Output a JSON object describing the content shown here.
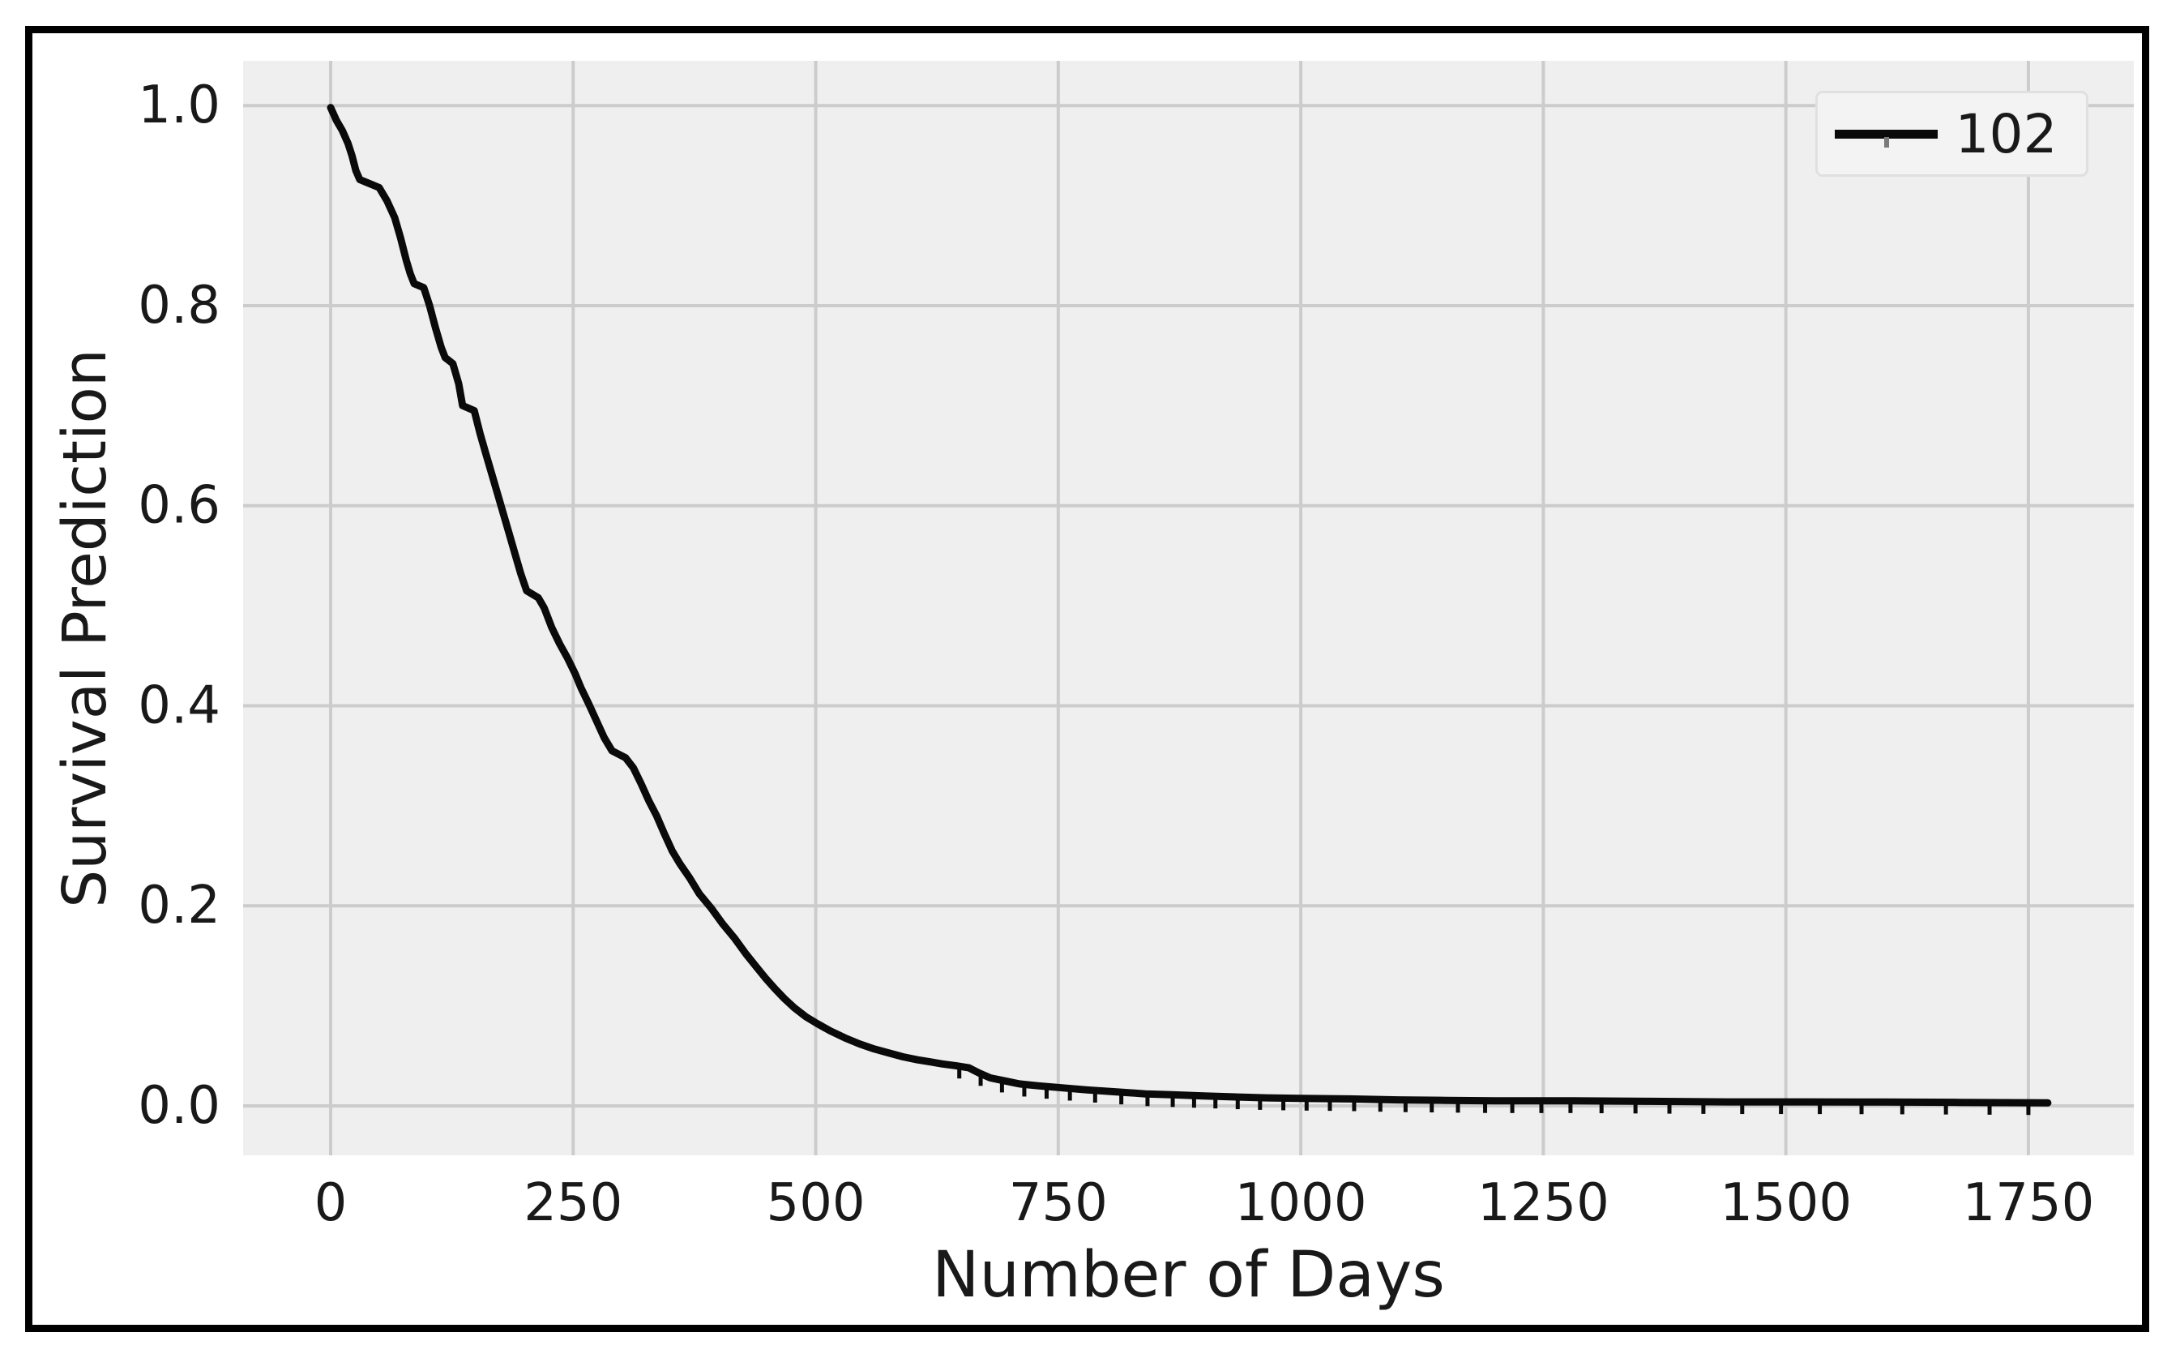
{
  "figure": {
    "kind": "survival-curve-figure",
    "background": "#ffffff",
    "frame_color": "#000000"
  },
  "chart_data": {
    "type": "line",
    "title": "",
    "xlabel": "Number of Days",
    "ylabel": "Survival Prediction",
    "xlim": [
      -90,
      1860
    ],
    "ylim": [
      -0.05,
      1.045
    ],
    "x_ticks": [
      "0",
      "250",
      "500",
      "750",
      "1000",
      "1250",
      "1500",
      "1750"
    ],
    "x_tick_values": [
      0,
      250,
      500,
      750,
      1000,
      1250,
      1500,
      1750
    ],
    "y_ticks": [
      "0.0",
      "0.2",
      "0.4",
      "0.6",
      "0.8",
      "1.0"
    ],
    "y_tick_values": [
      0.0,
      0.2,
      0.4,
      0.6,
      0.8,
      1.0
    ],
    "grid": true,
    "legend_position": "upper right",
    "colors": {
      "plot_bg": "#efefef",
      "grid": "#cccccc",
      "line": "#0a0a0a",
      "text": "#191919",
      "legend_bg": "#f3f3f3",
      "legend_border": "#e0e0e0",
      "censor_mark": "#0a0a0a"
    },
    "series": [
      {
        "name": "102",
        "color": "#0a0a0a",
        "points": [
          [
            0,
            0.998
          ],
          [
            6,
            0.985
          ],
          [
            12,
            0.975
          ],
          [
            18,
            0.962
          ],
          [
            22,
            0.95
          ],
          [
            26,
            0.935
          ],
          [
            30,
            0.926
          ],
          [
            40,
            0.922
          ],
          [
            50,
            0.918
          ],
          [
            58,
            0.905
          ],
          [
            66,
            0.888
          ],
          [
            72,
            0.868
          ],
          [
            78,
            0.845
          ],
          [
            82,
            0.832
          ],
          [
            86,
            0.822
          ],
          [
            96,
            0.818
          ],
          [
            102,
            0.8
          ],
          [
            108,
            0.778
          ],
          [
            114,
            0.758
          ],
          [
            118,
            0.748
          ],
          [
            126,
            0.742
          ],
          [
            132,
            0.722
          ],
          [
            136,
            0.7
          ],
          [
            148,
            0.695
          ],
          [
            154,
            0.672
          ],
          [
            160,
            0.652
          ],
          [
            166,
            0.632
          ],
          [
            172,
            0.612
          ],
          [
            178,
            0.592
          ],
          [
            184,
            0.572
          ],
          [
            190,
            0.552
          ],
          [
            196,
            0.532
          ],
          [
            202,
            0.515
          ],
          [
            214,
            0.508
          ],
          [
            220,
            0.498
          ],
          [
            228,
            0.478
          ],
          [
            236,
            0.462
          ],
          [
            244,
            0.448
          ],
          [
            252,
            0.432
          ],
          [
            258,
            0.418
          ],
          [
            266,
            0.402
          ],
          [
            274,
            0.385
          ],
          [
            282,
            0.368
          ],
          [
            290,
            0.355
          ],
          [
            304,
            0.348
          ],
          [
            312,
            0.338
          ],
          [
            320,
            0.322
          ],
          [
            328,
            0.305
          ],
          [
            336,
            0.29
          ],
          [
            344,
            0.272
          ],
          [
            352,
            0.255
          ],
          [
            360,
            0.242
          ],
          [
            370,
            0.228
          ],
          [
            380,
            0.212
          ],
          [
            392,
            0.198
          ],
          [
            404,
            0.182
          ],
          [
            416,
            0.168
          ],
          [
            428,
            0.152
          ],
          [
            438,
            0.14
          ],
          [
            448,
            0.128
          ],
          [
            458,
            0.117
          ],
          [
            468,
            0.107
          ],
          [
            478,
            0.098
          ],
          [
            490,
            0.089
          ],
          [
            502,
            0.082
          ],
          [
            515,
            0.075
          ],
          [
            530,
            0.068
          ],
          [
            545,
            0.062
          ],
          [
            560,
            0.057
          ],
          [
            575,
            0.053
          ],
          [
            590,
            0.049
          ],
          [
            605,
            0.046
          ],
          [
            618,
            0.044
          ],
          [
            630,
            0.042
          ],
          [
            645,
            0.04
          ],
          [
            658,
            0.038
          ],
          [
            668,
            0.033
          ],
          [
            680,
            0.028
          ],
          [
            695,
            0.025
          ],
          [
            710,
            0.022
          ],
          [
            730,
            0.02
          ],
          [
            755,
            0.018
          ],
          [
            780,
            0.016
          ],
          [
            810,
            0.014
          ],
          [
            840,
            0.012
          ],
          [
            870,
            0.011
          ],
          [
            900,
            0.01
          ],
          [
            930,
            0.009
          ],
          [
            965,
            0.008
          ],
          [
            1000,
            0.0075
          ],
          [
            1050,
            0.007
          ],
          [
            1100,
            0.006
          ],
          [
            1150,
            0.0055
          ],
          [
            1200,
            0.005
          ],
          [
            1280,
            0.005
          ],
          [
            1360,
            0.0045
          ],
          [
            1440,
            0.004
          ],
          [
            1520,
            0.004
          ],
          [
            1600,
            0.0038
          ],
          [
            1680,
            0.0035
          ],
          [
            1770,
            0.003
          ]
        ],
        "censor_tick_days": [
          648,
          670,
          692,
          715,
          738,
          762,
          788,
          815,
          842,
          868,
          890,
          912,
          935,
          958,
          982,
          1006,
          1030,
          1055,
          1082,
          1108,
          1135,
          1162,
          1190,
          1218,
          1248,
          1278,
          1310,
          1345,
          1380,
          1415,
          1455,
          1495,
          1535,
          1578,
          1620,
          1665,
          1710,
          1750
        ]
      }
    ],
    "legend": {
      "label": "102"
    }
  }
}
